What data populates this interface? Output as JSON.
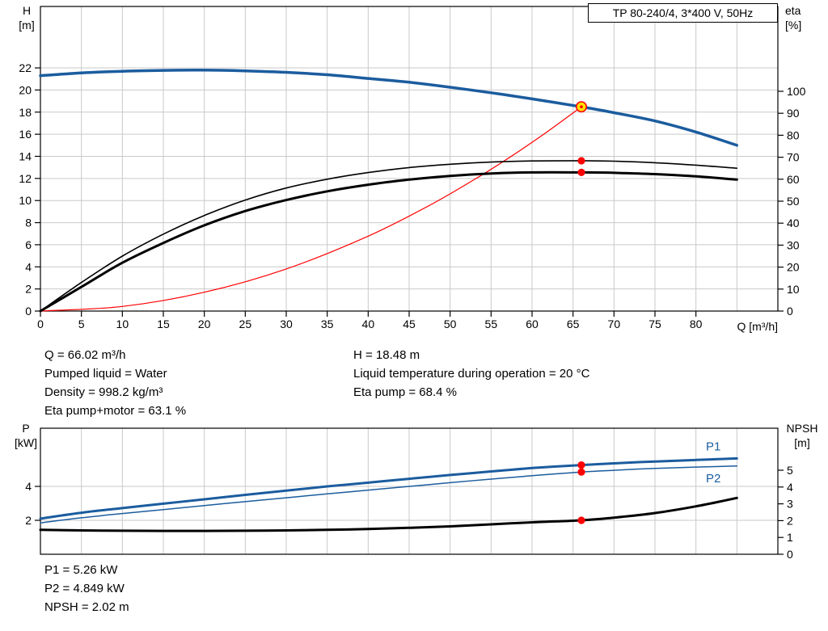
{
  "colors": {
    "curve_blue": "#1b5c9e",
    "curve_black": "#000000",
    "curve_red": "#ff0000",
    "marker_red": "#ff0000",
    "marker_yellow_fill": "#ffe100",
    "grid": "#c9c9c9",
    "axis": "#000000",
    "background": "#ffffff"
  },
  "title_box": {
    "label": "TP 80-240/4, 3*400 V, 50Hz"
  },
  "top_chart_labels": {
    "y_left_1": "H",
    "y_left_2": "[m]",
    "y_right_1": "eta",
    "y_right_2": "[%]",
    "x": "Q [m³/h]"
  },
  "bottom_chart_labels": {
    "y_left_1": "P",
    "y_left_2": "[kW]",
    "y_right_1": "NPSH",
    "y_right_2": "[m]"
  },
  "info_top": {
    "col1": [
      "Q = 66.02 m³/h",
      "Pumped liquid = Water",
      "Density = 998.2 kg/m³",
      "Eta pump+motor = 63.1 %"
    ],
    "col2": [
      "H = 18.48 m",
      "Liquid temperature during operation = 20 °C",
      "Eta pump = 68.4 %"
    ]
  },
  "info_bottom": [
    "P1 = 5.26 kW",
    "P2 = 4.849 kW",
    "NPSH = 2.02 m"
  ],
  "chart_data": [
    {
      "type": "line",
      "name": "head-efficiency-chart",
      "title": "TP 80-240/4, 3*400 V, 50Hz",
      "xlabel": "Q [m³/h]",
      "ylabel_left": "H [m]",
      "ylabel_right": "eta [%]",
      "xlim": [
        0,
        90
      ],
      "ylim_left": [
        0,
        27.56
      ],
      "ylim_right": [
        0,
        138.6
      ],
      "x_ticks": [
        0,
        5,
        10,
        15,
        20,
        25,
        30,
        35,
        40,
        45,
        50,
        55,
        60,
        65,
        70,
        75,
        80
      ],
      "grid_x": [
        5,
        10,
        15,
        20,
        25,
        30,
        35,
        40,
        45,
        50,
        55,
        60,
        65,
        70,
        75,
        80,
        85
      ],
      "y_ticks_left": [
        0,
        2,
        4,
        6,
        8,
        10,
        12,
        14,
        16,
        18,
        20,
        22
      ],
      "grid_y_left": [
        2,
        4,
        6,
        8,
        10,
        12,
        14,
        16,
        18,
        20,
        22
      ],
      "y_ticks_right": [
        0,
        10,
        20,
        30,
        40,
        50,
        60,
        70,
        80,
        90,
        100
      ],
      "series": [
        {
          "name": "system-curve",
          "axis": "left",
          "color": "curve_red",
          "width": 1.2,
          "points": [
            [
              0,
              0
            ],
            [
              10,
              0.42
            ],
            [
              20,
              1.7
            ],
            [
              30,
              3.81
            ],
            [
              40,
              6.78
            ],
            [
              48,
              9.77
            ],
            [
              54,
              12.37
            ],
            [
              58,
              14.26
            ],
            [
              62,
              16.3
            ],
            [
              66.02,
              18.48
            ]
          ]
        },
        {
          "name": "eta-pump",
          "axis": "right",
          "color": "curve_black",
          "width": 1.6,
          "points": [
            [
              0,
              0
            ],
            [
              5,
              13
            ],
            [
              10,
              25
            ],
            [
              15,
              35
            ],
            [
              20,
              43.5
            ],
            [
              25,
              50.5
            ],
            [
              30,
              56
            ],
            [
              35,
              60
            ],
            [
              40,
              63
            ],
            [
              45,
              65.3
            ],
            [
              50,
              66.8
            ],
            [
              55,
              67.8
            ],
            [
              60,
              68.3
            ],
            [
              66.02,
              68.4
            ],
            [
              70,
              68.2
            ],
            [
              75,
              67.5
            ],
            [
              80,
              66.4
            ],
            [
              85,
              65
            ]
          ]
        },
        {
          "name": "eta-pump-plus-motor",
          "axis": "right",
          "color": "curve_black",
          "width": 3,
          "points": [
            [
              0,
              0
            ],
            [
              5,
              11
            ],
            [
              10,
              22
            ],
            [
              15,
              31
            ],
            [
              20,
              39
            ],
            [
              25,
              45.5
            ],
            [
              30,
              50.5
            ],
            [
              35,
              54.5
            ],
            [
              40,
              57.5
            ],
            [
              45,
              59.8
            ],
            [
              50,
              61.5
            ],
            [
              55,
              62.6
            ],
            [
              60,
              63.1
            ],
            [
              66.02,
              63.1
            ],
            [
              70,
              62.9
            ],
            [
              75,
              62.3
            ],
            [
              80,
              61.3
            ],
            [
              85,
              59.8
            ]
          ]
        },
        {
          "name": "head-curve",
          "axis": "left",
          "color": "curve_blue",
          "width": 3.5,
          "points": [
            [
              0,
              21.3
            ],
            [
              5,
              21.55
            ],
            [
              10,
              21.7
            ],
            [
              15,
              21.78
            ],
            [
              20,
              21.8
            ],
            [
              25,
              21.73
            ],
            [
              30,
              21.6
            ],
            [
              35,
              21.38
            ],
            [
              40,
              21.05
            ],
            [
              45,
              20.7
            ],
            [
              50,
              20.25
            ],
            [
              55,
              19.75
            ],
            [
              60,
              19.2
            ],
            [
              66.02,
              18.48
            ],
            [
              70,
              17.95
            ],
            [
              75,
              17.2
            ],
            [
              80,
              16.2
            ],
            [
              85,
              15.0
            ]
          ]
        }
      ],
      "markers": [
        {
          "name": "duty-point",
          "style": "duty",
          "axis": "left",
          "x": 66.02,
          "y": 18.48
        },
        {
          "name": "eta-pump-point",
          "style": "dot",
          "axis": "right",
          "x": 66.02,
          "y": 68.4
        },
        {
          "name": "eta-pump-motor-point",
          "style": "dot",
          "axis": "right",
          "x": 66.02,
          "y": 63.1
        }
      ]
    },
    {
      "type": "line",
      "name": "power-npsh-chart",
      "ylabel_left": "P [kW]",
      "ylabel_right": "NPSH [m]",
      "xlim": [
        0,
        90
      ],
      "ylim_left": [
        0,
        7.43
      ],
      "ylim_right": [
        0,
        7.5
      ],
      "x_ticks": [],
      "grid_x": [
        5,
        10,
        15,
        20,
        25,
        30,
        35,
        40,
        45,
        50,
        55,
        60,
        65,
        70,
        75,
        80,
        85
      ],
      "y_ticks_left": [
        2,
        4
      ],
      "grid_y_left": [
        2,
        4
      ],
      "y_ticks_right": [
        0,
        1,
        2,
        3,
        4,
        5
      ],
      "series": [
        {
          "name": "P1",
          "axis": "left",
          "color": "curve_blue",
          "width": 3,
          "label": "P1",
          "label_pos": "above",
          "points": [
            [
              0,
              2.1
            ],
            [
              5,
              2.45
            ],
            [
              10,
              2.72
            ],
            [
              15,
              2.98
            ],
            [
              20,
              3.24
            ],
            [
              25,
              3.5
            ],
            [
              30,
              3.75
            ],
            [
              35,
              4.0
            ],
            [
              40,
              4.22
            ],
            [
              45,
              4.45
            ],
            [
              50,
              4.67
            ],
            [
              55,
              4.88
            ],
            [
              60,
              5.08
            ],
            [
              66.02,
              5.26
            ],
            [
              70,
              5.36
            ],
            [
              75,
              5.47
            ],
            [
              80,
              5.56
            ],
            [
              85,
              5.65
            ]
          ]
        },
        {
          "name": "P2",
          "axis": "left",
          "color": "curve_blue",
          "width": 1.5,
          "label": "P2",
          "label_pos": "below",
          "points": [
            [
              0,
              1.85
            ],
            [
              5,
              2.15
            ],
            [
              10,
              2.4
            ],
            [
              15,
              2.63
            ],
            [
              20,
              2.87
            ],
            [
              25,
              3.1
            ],
            [
              30,
              3.33
            ],
            [
              35,
              3.56
            ],
            [
              40,
              3.78
            ],
            [
              45,
              4.0
            ],
            [
              50,
              4.22
            ],
            [
              55,
              4.43
            ],
            [
              60,
              4.63
            ],
            [
              66.02,
              4.849
            ],
            [
              70,
              4.95
            ],
            [
              75,
              5.06
            ],
            [
              80,
              5.14
            ],
            [
              85,
              5.2
            ]
          ]
        },
        {
          "name": "NPSH",
          "axis": "right",
          "color": "curve_black",
          "width": 3,
          "points": [
            [
              0,
              1.45
            ],
            [
              5,
              1.42
            ],
            [
              10,
              1.4
            ],
            [
              15,
              1.39
            ],
            [
              20,
              1.39
            ],
            [
              25,
              1.4
            ],
            [
              30,
              1.42
            ],
            [
              35,
              1.45
            ],
            [
              40,
              1.5
            ],
            [
              45,
              1.57
            ],
            [
              50,
              1.66
            ],
            [
              55,
              1.78
            ],
            [
              60,
              1.9
            ],
            [
              66.02,
              2.02
            ],
            [
              70,
              2.18
            ],
            [
              75,
              2.45
            ],
            [
              80,
              2.85
            ],
            [
              85,
              3.35
            ]
          ]
        }
      ],
      "markers": [
        {
          "name": "p1-point",
          "style": "dot",
          "axis": "left",
          "x": 66.02,
          "y": 5.26
        },
        {
          "name": "p2-point",
          "style": "dot",
          "axis": "left",
          "x": 66.02,
          "y": 4.849
        },
        {
          "name": "npsh-point",
          "style": "dot",
          "axis": "right",
          "x": 66.02,
          "y": 2.02
        }
      ]
    }
  ]
}
